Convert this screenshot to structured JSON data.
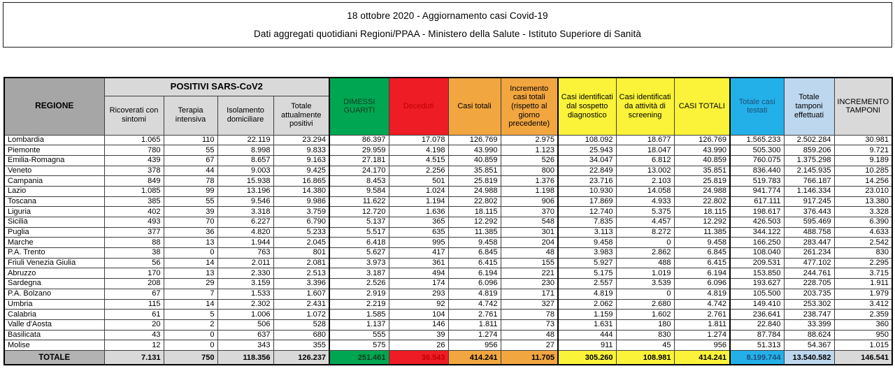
{
  "header": {
    "line1": "18 ottobre 2020 - Aggiornamento casi Covid-19",
    "line2": "Dati aggregati quotidiani Regioni/PPAA - Ministero della Salute - Istituto Superiore di Sanità"
  },
  "colors": {
    "green": "#00A651",
    "red": "#EE1C25",
    "orange": "#F2A640",
    "yellow": "#FAF339",
    "cyan": "#23B0E8",
    "light_blue": "#BDD7EE",
    "light_gray": "#D9D9D9",
    "header_gray": "#A6A6A6",
    "total_label_bg": "#B3B3B3",
    "total_plain_bg": "#D9D9D9"
  },
  "table": {
    "region_header": "REGIONE",
    "group_header": "POSITIVI SARS-CoV2",
    "columns": [
      {
        "label": "Ricoverati con sintomi"
      },
      {
        "label": "Terapia intensiva"
      },
      {
        "label": "Isolamento domiciliare"
      },
      {
        "label": "Totale attualmente positivi"
      },
      {
        "label": "DIMESSI GUARITI",
        "bg": "#00A651",
        "fg": "#0e3a20"
      },
      {
        "label": "Deceduti",
        "bg": "#EE1C25",
        "fg": "#C00000"
      },
      {
        "label": "Casi totali",
        "bg": "#F2A640"
      },
      {
        "label": "Incremento casi totali (rispetto al giorno precedente)",
        "bg": "#F2A640"
      },
      {
        "label": "Casi identificati dal sospetto diagnostico",
        "bg": "#FAF339"
      },
      {
        "label": "Casi identificati da attività di screening",
        "bg": "#FAF339"
      },
      {
        "label": "CASI TOTALI",
        "bg": "#FAF339"
      },
      {
        "label": "Totale casi testati",
        "bg": "#23B0E8",
        "fg": "#1F4E79"
      },
      {
        "label": "Totale tamponi effettuati",
        "bg": "#BDD7EE"
      },
      {
        "label": "INCREMENTO TAMPONI",
        "bg": "#D9D9D9"
      }
    ],
    "rows": [
      {
        "region": "Lombardia",
        "values": [
          "1.065",
          "110",
          "22.119",
          "23.294",
          "86.397",
          "17.078",
          "126.769",
          "2.975",
          "108.092",
          "18.677",
          "126.769",
          "1.565.233",
          "2.502.284",
          "30.981"
        ]
      },
      {
        "region": "Piemonte",
        "values": [
          "780",
          "55",
          "8.998",
          "9.833",
          "29.959",
          "4.198",
          "43.990",
          "1.123",
          "25.943",
          "18.047",
          "43.990",
          "505.300",
          "859.206",
          "9.721"
        ]
      },
      {
        "region": "Emilia-Romagna",
        "values": [
          "439",
          "67",
          "8.657",
          "9.163",
          "27.181",
          "4.515",
          "40.859",
          "526",
          "34.047",
          "6.812",
          "40.859",
          "760.075",
          "1.375.298",
          "9.189"
        ]
      },
      {
        "region": "Veneto",
        "values": [
          "378",
          "44",
          "9.003",
          "9.425",
          "24.170",
          "2.256",
          "35.851",
          "800",
          "22.849",
          "13.002",
          "35.851",
          "836.440",
          "2.145.935",
          "10.285"
        ]
      },
      {
        "region": "Campania",
        "values": [
          "849",
          "78",
          "15.938",
          "16.865",
          "8.453",
          "501",
          "25.819",
          "1.376",
          "23.716",
          "2.103",
          "25.819",
          "519.783",
          "766.187",
          "14.256"
        ]
      },
      {
        "region": "Lazio",
        "values": [
          "1.085",
          "99",
          "13.196",
          "14.380",
          "9.584",
          "1.024",
          "24.988",
          "1.198",
          "10.930",
          "14.058",
          "24.988",
          "941.774",
          "1.146.334",
          "23.010"
        ]
      },
      {
        "region": "Toscana",
        "values": [
          "385",
          "55",
          "9.546",
          "9.986",
          "11.622",
          "1.194",
          "22.802",
          "906",
          "17.869",
          "4.933",
          "22.802",
          "617.111",
          "917.245",
          "13.380"
        ]
      },
      {
        "region": "Liguria",
        "values": [
          "402",
          "39",
          "3.318",
          "3.759",
          "12.720",
          "1.636",
          "18.115",
          "370",
          "12.740",
          "5.375",
          "18.115",
          "198.617",
          "376.443",
          "3.328"
        ]
      },
      {
        "region": "Sicilia",
        "values": [
          "493",
          "70",
          "6.227",
          "6.790",
          "5.137",
          "365",
          "12.292",
          "548",
          "7.835",
          "4.457",
          "12.292",
          "426.503",
          "595.469",
          "6.390"
        ]
      },
      {
        "region": "Puglia",
        "values": [
          "377",
          "36",
          "4.820",
          "5.233",
          "5.517",
          "635",
          "11.385",
          "301",
          "3.113",
          "8.272",
          "11.385",
          "344.122",
          "488.758",
          "4.633"
        ]
      },
      {
        "region": "Marche",
        "values": [
          "88",
          "13",
          "1.944",
          "2.045",
          "6.418",
          "995",
          "9.458",
          "204",
          "9.458",
          "0",
          "9.458",
          "166.250",
          "283.447",
          "2.542"
        ]
      },
      {
        "region": "P.A. Trento",
        "values": [
          "38",
          "0",
          "763",
          "801",
          "5.627",
          "417",
          "6.845",
          "48",
          "3.983",
          "2.862",
          "6.845",
          "108.040",
          "261.234",
          "830"
        ]
      },
      {
        "region": "Friuli Venezia Giulia",
        "values": [
          "56",
          "14",
          "2.011",
          "2.081",
          "3.973",
          "361",
          "6.415",
          "155",
          "5.927",
          "488",
          "6.415",
          "209.531",
          "477.102",
          "2.295"
        ]
      },
      {
        "region": "Abruzzo",
        "values": [
          "170",
          "13",
          "2.330",
          "2.513",
          "3.187",
          "494",
          "6.194",
          "221",
          "5.175",
          "1.019",
          "6.194",
          "153.850",
          "244.761",
          "3.715"
        ]
      },
      {
        "region": "Sardegna",
        "values": [
          "208",
          "29",
          "3.159",
          "3.396",
          "2.526",
          "174",
          "6.096",
          "230",
          "2.557",
          "3.539",
          "6.096",
          "193.627",
          "228.705",
          "1.911"
        ]
      },
      {
        "region": "P.A. Bolzano",
        "values": [
          "67",
          "7",
          "1.533",
          "1.607",
          "2.919",
          "293",
          "4.819",
          "171",
          "4.819",
          "0",
          "4.819",
          "105.500",
          "203.735",
          "1.979"
        ]
      },
      {
        "region": "Umbria",
        "values": [
          "115",
          "14",
          "2.302",
          "2.431",
          "2.219",
          "92",
          "4.742",
          "327",
          "2.062",
          "2.680",
          "4.742",
          "149.410",
          "253.302",
          "3.412"
        ]
      },
      {
        "region": "Calabria",
        "values": [
          "61",
          "5",
          "1.006",
          "1.072",
          "1.585",
          "104",
          "2.761",
          "78",
          "1.159",
          "1.602",
          "2.761",
          "236.641",
          "238.747",
          "2.359"
        ]
      },
      {
        "region": "Valle d'Aosta",
        "values": [
          "20",
          "2",
          "506",
          "528",
          "1.137",
          "146",
          "1.811",
          "73",
          "1.631",
          "180",
          "1.811",
          "22.840",
          "33.399",
          "360"
        ]
      },
      {
        "region": "Basilicata",
        "values": [
          "43",
          "0",
          "637",
          "680",
          "555",
          "39",
          "1.274",
          "48",
          "444",
          "830",
          "1.274",
          "87.784",
          "88.624",
          "950"
        ]
      },
      {
        "region": "Molise",
        "values": [
          "12",
          "0",
          "343",
          "355",
          "575",
          "26",
          "956",
          "27",
          "911",
          "45",
          "956",
          "51.313",
          "54.367",
          "1.015"
        ]
      }
    ],
    "totals": {
      "label": "TOTALE",
      "values": [
        "7.131",
        "750",
        "118.356",
        "126.237",
        "251.461",
        "36.543",
        "414.241",
        "11.705",
        "305.260",
        "108.981",
        "414.241",
        "8.199.744",
        "13.540.582",
        "146.541"
      ]
    }
  }
}
